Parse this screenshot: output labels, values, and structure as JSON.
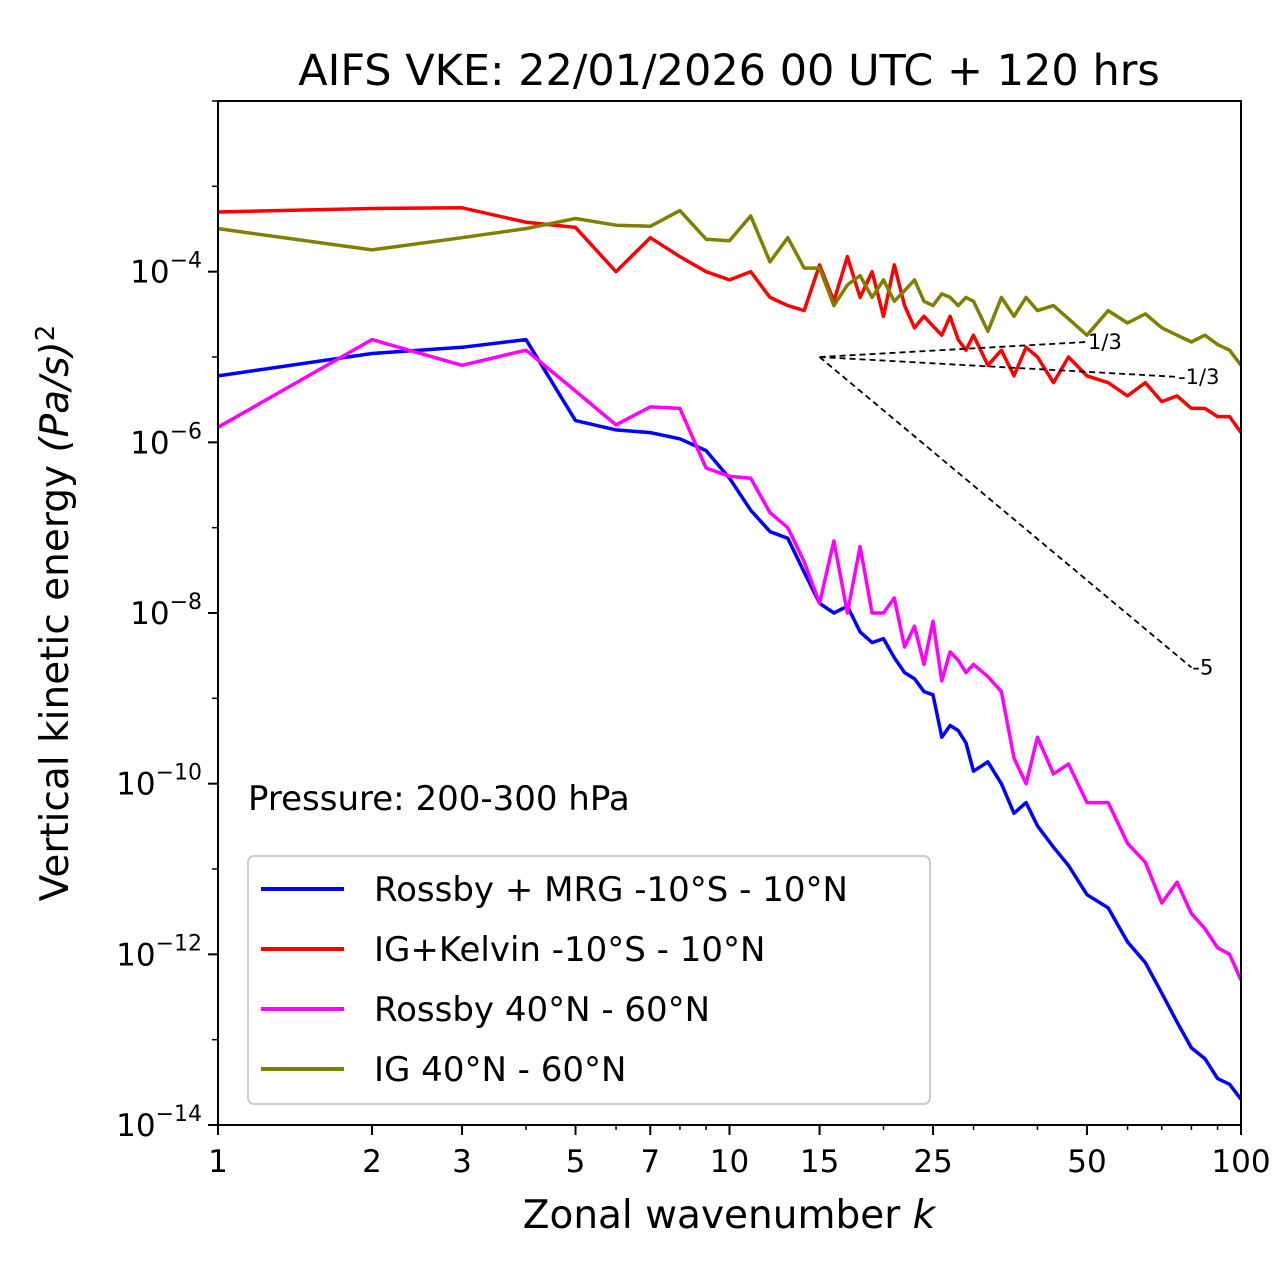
{
  "chart_data": {
    "type": "line",
    "title": "AIFS VKE: 22/01/2026 00 UTC + 120 hrs",
    "xlabel": "Zonal wavenumber",
    "xlabel_symbol": "k",
    "ylabel": "Vertical kinetic energy",
    "ylabel_units": "(Pa/s)",
    "ylabel_power": "2",
    "xscale": "log",
    "yscale": "log",
    "xlim": [
      1,
      100
    ],
    "ylim": [
      1e-14,
      0.01
    ],
    "x_ticks": [
      1,
      2,
      3,
      5,
      7,
      10,
      15,
      25,
      50,
      100
    ],
    "x_tick_labels": [
      "1",
      "2",
      "3",
      "5",
      "7",
      "10",
      "15",
      "25",
      "50",
      "100"
    ],
    "y_ticks": [
      {
        "base": "10",
        "exp": "−4",
        "value_exp": -4
      },
      {
        "base": "10",
        "exp": "−6",
        "value_exp": -6
      },
      {
        "base": "10",
        "exp": "−8",
        "value_exp": -8
      },
      {
        "base": "10",
        "exp": "−10",
        "value_exp": -10
      },
      {
        "base": "10",
        "exp": "−12",
        "value_exp": -12
      },
      {
        "base": "10",
        "exp": "−14",
        "value_exp": -14
      }
    ],
    "annotation": "Pressure: 200-300 hPa",
    "legend_position": "lower-left",
    "reference_lines": [
      {
        "slope_label": "1/3",
        "x0": 15,
        "y0": 1e-05,
        "x1": 50,
        "y1": 1.5e-05
      },
      {
        "slope_label": "-1/3",
        "x0": 15,
        "y0": 1e-05,
        "x1": 75,
        "y1": 5.85e-06
      },
      {
        "slope_label": "-5",
        "x0": 15,
        "y0": 1e-05,
        "x1": 80,
        "y1": 2.3e-09
      }
    ],
    "series": [
      {
        "name": "Rossby + MRG -10°S - 10°N",
        "color": "#0000ff",
        "x": [
          1,
          2,
          3,
          4,
          5,
          6,
          7,
          8,
          9,
          10,
          11,
          12,
          13,
          14,
          15,
          16,
          17,
          18,
          19,
          20,
          21,
          22,
          23,
          24,
          25,
          26,
          27,
          28,
          29,
          30,
          32,
          34,
          36,
          38,
          40,
          43,
          46,
          50,
          55,
          60,
          65,
          70,
          75,
          80,
          85,
          90,
          95,
          100
        ],
        "y": [
          6e-06,
          1.1e-05,
          1.3e-05,
          1.6e-05,
          1.8e-06,
          1.4e-06,
          1.3e-06,
          1.1e-06,
          8e-07,
          3.8e-07,
          1.6e-07,
          9e-08,
          7.5e-08,
          3e-08,
          1.3e-08,
          1e-08,
          1.2e-08,
          6e-09,
          4.5e-09,
          5e-09,
          3e-09,
          2e-09,
          1.7e-09,
          1.2e-09,
          1.1e-09,
          3.5e-10,
          4.8e-10,
          4.2e-10,
          3e-10,
          1.4e-10,
          1.8e-10,
          1e-10,
          4.5e-11,
          6e-11,
          3.2e-11,
          1.8e-11,
          1.1e-11,
          5e-12,
          3.5e-12,
          1.4e-12,
          8e-13,
          3.5e-13,
          1.6e-13,
          8e-14,
          6e-14,
          3.5e-14,
          3e-14,
          2e-14
        ]
      },
      {
        "name": "IG+Kelvin -10°S - 10°N",
        "color": "#ff0000",
        "x": [
          1,
          2,
          3,
          4,
          5,
          6,
          7,
          8,
          9,
          10,
          11,
          12,
          13,
          14,
          15,
          16,
          17,
          18,
          19,
          20,
          21,
          22,
          23,
          24,
          25,
          26,
          27,
          28,
          29,
          30,
          32,
          34,
          36,
          38,
          40,
          43,
          46,
          50,
          55,
          60,
          65,
          70,
          75,
          80,
          85,
          90,
          95,
          100
        ],
        "y": [
          0.0005,
          0.00055,
          0.00056,
          0.00038,
          0.00033,
          0.0001,
          0.00025,
          0.00015,
          0.0001,
          8e-05,
          0.0001,
          5e-05,
          4e-05,
          3.5e-05,
          0.00012,
          4.5e-05,
          0.00015,
          5e-05,
          0.0001,
          3e-05,
          0.00012,
          4e-05,
          2.2e-05,
          3e-05,
          2.3e-05,
          1.8e-05,
          3e-05,
          1.6e-05,
          1.2e-05,
          1.8e-05,
          8e-06,
          1.2e-05,
          6e-06,
          1.3e-05,
          1e-05,
          5e-06,
          1e-05,
          6e-06,
          5e-06,
          3.5e-06,
          5e-06,
          3e-06,
          3.5e-06,
          2.5e-06,
          2.5e-06,
          2e-06,
          2e-06,
          1.3e-06
        ]
      },
      {
        "name": "Rossby 40°N - 60°N",
        "color": "#ff00ff",
        "x": [
          1,
          2,
          3,
          4,
          5,
          6,
          7,
          8,
          9,
          10,
          11,
          12,
          13,
          14,
          15,
          16,
          17,
          18,
          19,
          20,
          21,
          22,
          23,
          24,
          25,
          26,
          27,
          28,
          29,
          30,
          32,
          34,
          36,
          38,
          40,
          43,
          46,
          50,
          55,
          60,
          65,
          70,
          75,
          80,
          85,
          90,
          95,
          100
        ],
        "y": [
          1.5e-06,
          1.6e-05,
          8e-06,
          1.2e-05,
          4e-06,
          1.6e-06,
          2.6e-06,
          2.5e-06,
          5e-07,
          4e-07,
          3.8e-07,
          1.5e-07,
          1e-07,
          4e-08,
          1.3e-08,
          7e-08,
          1e-08,
          6e-08,
          1e-08,
          1e-08,
          1.5e-08,
          4e-09,
          7e-09,
          2.5e-09,
          8e-09,
          1.6e-09,
          3.5e-09,
          2.8e-09,
          2e-09,
          2.5e-09,
          1.8e-09,
          1.2e-09,
          2e-10,
          1e-10,
          3.5e-10,
          1.3e-10,
          1.7e-10,
          6e-11,
          6e-11,
          2e-11,
          1.2e-11,
          4e-12,
          7e-12,
          3e-12,
          2e-12,
          1.2e-12,
          1e-12,
          5e-13
        ]
      },
      {
        "name": "IG 40°N - 60°N",
        "color": "#808000",
        "x": [
          1,
          2,
          3,
          4,
          5,
          6,
          7,
          8,
          9,
          10,
          11,
          12,
          13,
          14,
          15,
          16,
          17,
          18,
          19,
          20,
          21,
          22,
          23,
          24,
          25,
          26,
          27,
          28,
          29,
          30,
          32,
          34,
          36,
          38,
          40,
          43,
          46,
          50,
          55,
          60,
          65,
          70,
          75,
          80,
          85,
          90,
          95,
          100
        ],
        "y": [
          0.00032,
          0.00018,
          0.00025,
          0.00032,
          0.00042,
          0.00035,
          0.00034,
          0.00052,
          0.00024,
          0.00023,
          0.00045,
          0.00013,
          0.00025,
          0.00011,
          0.00011,
          4e-05,
          7e-05,
          9e-05,
          5e-05,
          8e-05,
          4.5e-05,
          6e-05,
          8e-05,
          4.5e-05,
          4e-05,
          5.5e-05,
          5e-05,
          4e-05,
          5e-05,
          4.5e-05,
          2e-05,
          5e-05,
          3e-05,
          5e-05,
          3.5e-05,
          4e-05,
          2.8e-05,
          1.8e-05,
          3.5e-05,
          2.5e-05,
          3.2e-05,
          2.2e-05,
          1.8e-05,
          1.5e-05,
          1.8e-05,
          1.4e-05,
          1.2e-05,
          8e-06
        ]
      }
    ]
  }
}
